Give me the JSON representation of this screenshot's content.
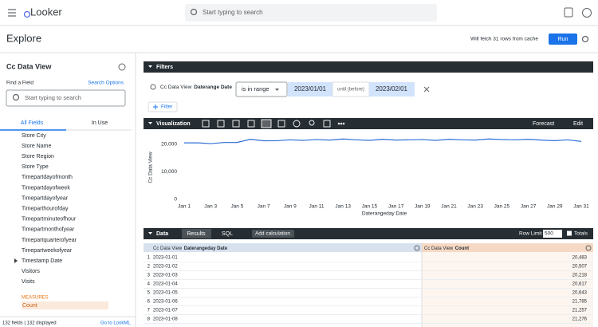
{
  "header": {
    "logo": "Looker",
    "search_placeholder": "Start typing to search"
  },
  "toolbar": {
    "title": "Explore",
    "cache_note": "Will fetch 31 rows from cache",
    "run": "Run"
  },
  "sidebar": {
    "view": "Cc Data View",
    "find_label": "Find a Field",
    "search_options": "Search Options",
    "search_placeholder": "Start typing to search",
    "tabs": [
      "All Fields",
      "In Use"
    ],
    "dimensions": [
      "Store City",
      "Store Name",
      "Store Region",
      "Store Type",
      "Timepartdayofmonth",
      "Timepartdayofweek",
      "Timepartdayofyear",
      "Timeparthourofday",
      "Timepartminuteofhour",
      "Timepartmonthofyear",
      "Timepartquarterofyear",
      "Timepartweekofyear",
      "Timestamp Date",
      "Visitors",
      "Visits"
    ],
    "measures_heading": "MEASURES",
    "measures": [
      "Count"
    ],
    "footer_count": "132 fields | 132 displayed",
    "lookml_link": "Go to LookML"
  },
  "filters": {
    "heading": "Filters",
    "field_view": "Cc Data View",
    "field_name": "Daterange Date",
    "operator": "is in range",
    "start": "2023/01/01",
    "separator": "until (before)",
    "end": "2023/02/01",
    "add": "Filter"
  },
  "visualization": {
    "heading": "Visualization",
    "forecast": "Forecast",
    "edit": "Edit"
  },
  "chart_data": {
    "type": "line",
    "x_label": "Daterangeday Date",
    "y_label": "Cc Data View",
    "categories": [
      "Jan 1",
      null,
      "Jan 3",
      null,
      "Jan 5",
      null,
      "Jan 7",
      null,
      "Jan 9",
      null,
      "Jan 11",
      null,
      "Jan 13",
      null,
      "Jan 15",
      null,
      "Jan 17",
      null,
      "Jan 19",
      null,
      "Jan 21",
      null,
      "Jan 23",
      null,
      "Jan 25",
      null,
      "Jan 27",
      null,
      "Jan 29",
      null,
      "Jan 31"
    ],
    "series": [
      {
        "color": "#2e6fd6",
        "values": [
          20483,
          20507,
          20218,
          20617,
          20643,
          21785,
          21257,
          21276,
          21600,
          21400,
          21700,
          21500,
          21900,
          21600,
          21400,
          21800,
          21500,
          21600,
          21700,
          21400,
          21800,
          21600,
          21500,
          21900,
          21700,
          21600,
          21800,
          21500,
          21300,
          21600,
          21000
        ]
      }
    ],
    "ylim": [
      0,
      24000
    ],
    "yticks": [
      0,
      {
        "value": 10000,
        "label": "10,000"
      },
      {
        "value": 20000,
        "label": "20,000"
      }
    ],
    "grid": false
  },
  "data_panel": {
    "heading": "Data",
    "tabs": [
      "Results",
      "SQL"
    ],
    "add_calculation": "Add calculation",
    "row_limit_label": "Row Limit",
    "row_limit": "500",
    "totals": "Totals"
  },
  "table": {
    "columns": [
      {
        "view": "Cc Data View",
        "name": "Daterangeday Date"
      },
      {
        "view": "Cc Data View",
        "name": "Count"
      }
    ],
    "rows": [
      [
        1,
        "2023-01-01",
        "20,483"
      ],
      [
        2,
        "2023-01-02",
        "20,507"
      ],
      [
        3,
        "2023-01-03",
        "20,218"
      ],
      [
        4,
        "2023-01-04",
        "20,617"
      ],
      [
        5,
        "2023-01-05",
        "20,643"
      ],
      [
        6,
        "2023-01-06",
        "21,785"
      ],
      [
        7,
        "2023-01-07",
        "21,257"
      ],
      [
        8,
        "2023-01-08",
        "21,276"
      ]
    ]
  }
}
